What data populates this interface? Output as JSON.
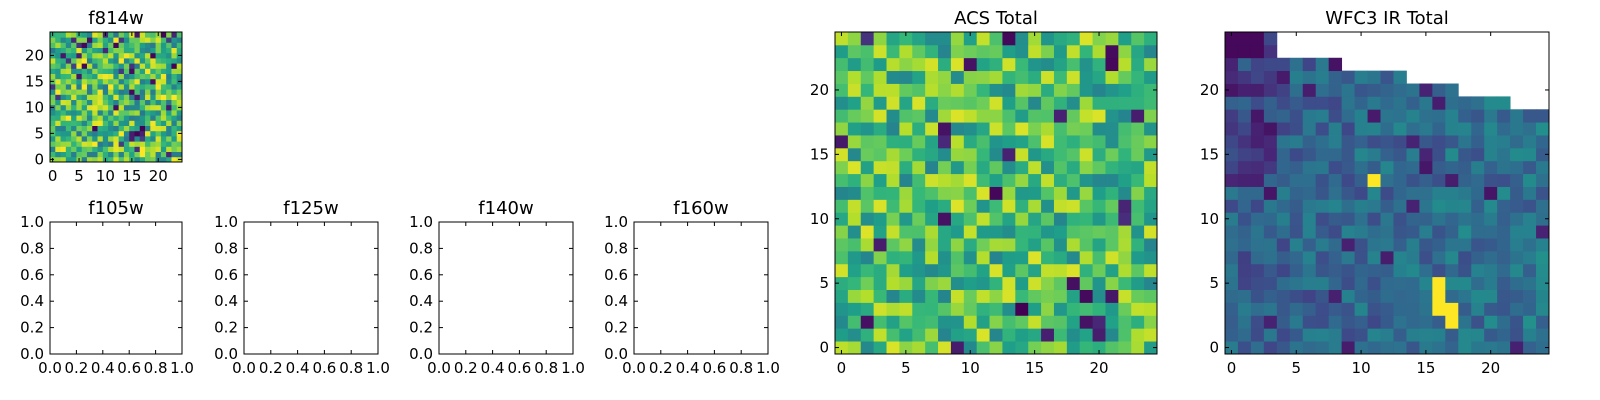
{
  "chart_data": [
    {
      "type": "heatmap",
      "title": "f814w",
      "colormap": "viridis",
      "grid_size": [
        25,
        25
      ],
      "xlim": [
        -0.5,
        24.5
      ],
      "ylim": [
        -0.5,
        24.5
      ],
      "xticks": [
        0,
        5,
        10,
        15,
        20
      ],
      "yticks": [
        0,
        5,
        10,
        15,
        20
      ],
      "values_note": "pixel map"
    },
    {
      "type": "blank",
      "title": "f105w",
      "xlim": [
        0,
        1
      ],
      "ylim": [
        0,
        1
      ],
      "xticks": [
        "0.0",
        "0.2",
        "0.4",
        "0.6",
        "0.8",
        "1.0"
      ],
      "yticks": [
        "0.0",
        "0.2",
        "0.4",
        "0.6",
        "0.8",
        "1.0"
      ]
    },
    {
      "type": "blank",
      "title": "f125w",
      "xlim": [
        0,
        1
      ],
      "ylim": [
        0,
        1
      ],
      "xticks": [
        "0.0",
        "0.2",
        "0.4",
        "0.6",
        "0.8",
        "1.0"
      ],
      "yticks": [
        "0.0",
        "0.2",
        "0.4",
        "0.6",
        "0.8",
        "1.0"
      ]
    },
    {
      "type": "blank",
      "title": "f140w",
      "xlim": [
        0,
        1
      ],
      "ylim": [
        0,
        1
      ],
      "xticks": [
        "0.0",
        "0.2",
        "0.4",
        "0.6",
        "0.8",
        "1.0"
      ],
      "yticks": [
        "0.0",
        "0.2",
        "0.4",
        "0.6",
        "0.8",
        "1.0"
      ]
    },
    {
      "type": "blank",
      "title": "f160w",
      "xlim": [
        0,
        1
      ],
      "ylim": [
        0,
        1
      ],
      "xticks": [
        "0.0",
        "0.2",
        "0.4",
        "0.6",
        "0.8",
        "1.0"
      ],
      "yticks": [
        "0.0",
        "0.2",
        "0.4",
        "0.6",
        "0.8",
        "1.0"
      ]
    },
    {
      "type": "heatmap",
      "title": "ACS Total",
      "colormap": "viridis",
      "grid_size": [
        25,
        25
      ],
      "xlim": [
        -0.5,
        24.5
      ],
      "ylim": [
        -0.5,
        24.5
      ],
      "xticks": [
        0,
        5,
        10,
        15,
        20
      ],
      "yticks": [
        0,
        5,
        10,
        15,
        20
      ]
    },
    {
      "type": "heatmap",
      "title": "WFC3 IR Total",
      "colormap": "viridis",
      "grid_size": [
        25,
        25
      ],
      "xlim": [
        -0.5,
        24.5
      ],
      "ylim": [
        -0.5,
        24.5
      ],
      "xticks": [
        0,
        5,
        10,
        15,
        20
      ],
      "yticks": [
        0,
        5,
        10,
        15,
        20
      ],
      "masked_top_right": "white (no data)",
      "bright_features": [
        {
          "x": 11,
          "y": 13,
          "value": "high"
        },
        {
          "x": 16,
          "y": 4,
          "value": "high"
        },
        {
          "x": 17,
          "y": 3,
          "value": "high"
        }
      ]
    }
  ]
}
